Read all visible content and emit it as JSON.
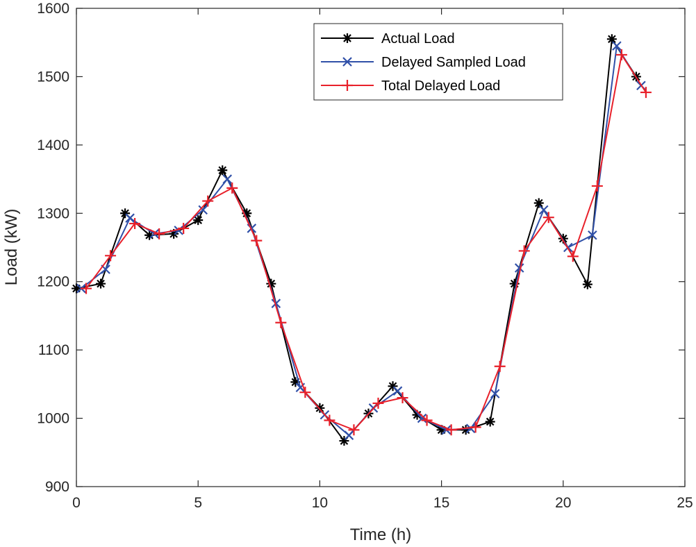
{
  "chart_data": {
    "type": "line",
    "title": "",
    "xlabel": "Time (h)",
    "ylabel": "Load (kW)",
    "xlim": [
      0,
      25
    ],
    "ylim": [
      900,
      1600
    ],
    "xticks": [
      0,
      5,
      10,
      15,
      20,
      25
    ],
    "yticks": [
      900,
      1000,
      1100,
      1200,
      1300,
      1400,
      1500,
      1600
    ],
    "grid": false,
    "legend_position": "top-right",
    "series": [
      {
        "name": "Actual Load",
        "color": "#000000",
        "marker": "asterisk",
        "x": [
          0,
          1,
          2,
          3,
          4,
          5,
          6,
          7,
          8,
          9,
          10,
          11,
          12,
          13,
          14,
          15,
          16,
          17,
          18,
          19,
          20,
          21,
          22,
          23
        ],
        "y": [
          1190,
          1197,
          1300,
          1268,
          1270,
          1290,
          1363,
          1300,
          1197,
          1053,
          1015,
          967,
          1007,
          1047,
          1005,
          983,
          983,
          995,
          1197,
          1315,
          1263,
          1196,
          1555,
          1500
        ]
      },
      {
        "name": "Delayed Sampled Load",
        "color": "#3050a8",
        "marker": "x",
        "x": [
          0.2,
          1.2,
          2.2,
          3.2,
          4.2,
          5.2,
          6.2,
          7.2,
          8.2,
          9.2,
          10.2,
          11.2,
          12.2,
          13.2,
          14.2,
          15.2,
          16.2,
          17.2,
          18.2,
          19.2,
          20.2,
          21.2,
          22.2,
          23.2
        ],
        "y": [
          1190,
          1218,
          1293,
          1270,
          1275,
          1305,
          1350,
          1278,
          1168,
          1045,
          1005,
          975,
          1015,
          1040,
          1000,
          983,
          985,
          1036,
          1220,
          1305,
          1250,
          1268,
          1545,
          1487
        ]
      },
      {
        "name": "Total Delayed Load",
        "color": "#e8202a",
        "marker": "plus",
        "x": [
          0.4,
          1.4,
          2.4,
          3.4,
          4.4,
          5.4,
          6.4,
          7.4,
          8.4,
          9.4,
          10.4,
          11.4,
          12.4,
          13.4,
          14.4,
          15.4,
          16.4,
          17.4,
          18.4,
          19.4,
          20.4,
          21.4,
          22.4,
          23.4
        ],
        "y": [
          1190,
          1238,
          1285,
          1270,
          1278,
          1318,
          1337,
          1260,
          1140,
          1038,
          997,
          983,
          1022,
          1030,
          997,
          983,
          987,
          1076,
          1245,
          1294,
          1237,
          1340,
          1532,
          1477
        ]
      }
    ]
  }
}
